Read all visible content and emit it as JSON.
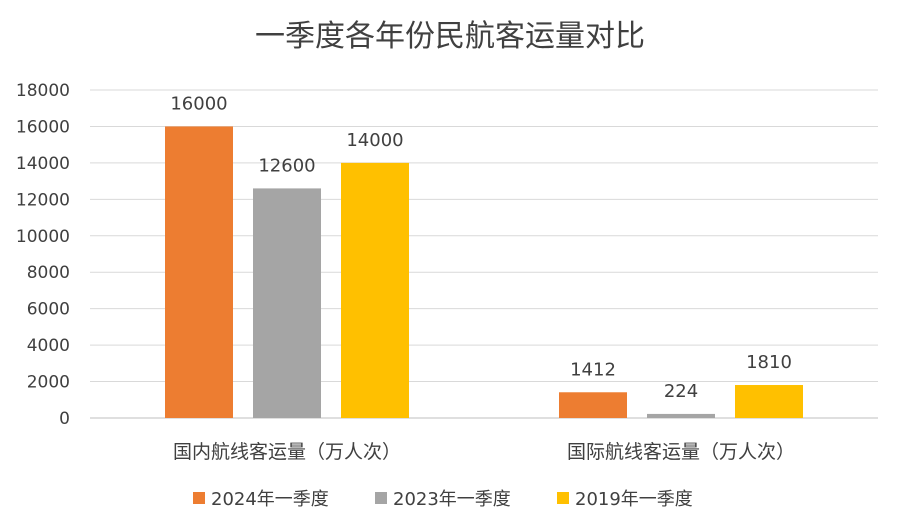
{
  "chart_data": {
    "type": "bar",
    "title": "一季度各年份民航客运量对比",
    "categories": [
      "国内航线客运量（万人次）",
      "国际航线客运量（万人次）"
    ],
    "series": [
      {
        "name": "2024年一季度",
        "values": [
          16000,
          1412
        ],
        "color": "#ED7D31"
      },
      {
        "name": "2023年一季度",
        "values": [
          12600,
          224
        ],
        "color": "#A5A5A5"
      },
      {
        "name": "2019年一季度",
        "values": [
          14000,
          1810
        ],
        "color": "#FFC000"
      }
    ],
    "ylim": [
      0,
      18000
    ],
    "yticks": [
      0,
      2000,
      4000,
      6000,
      8000,
      10000,
      12000,
      14000,
      16000,
      18000
    ],
    "grid": true,
    "legend": "bottom",
    "data_labels": true
  }
}
